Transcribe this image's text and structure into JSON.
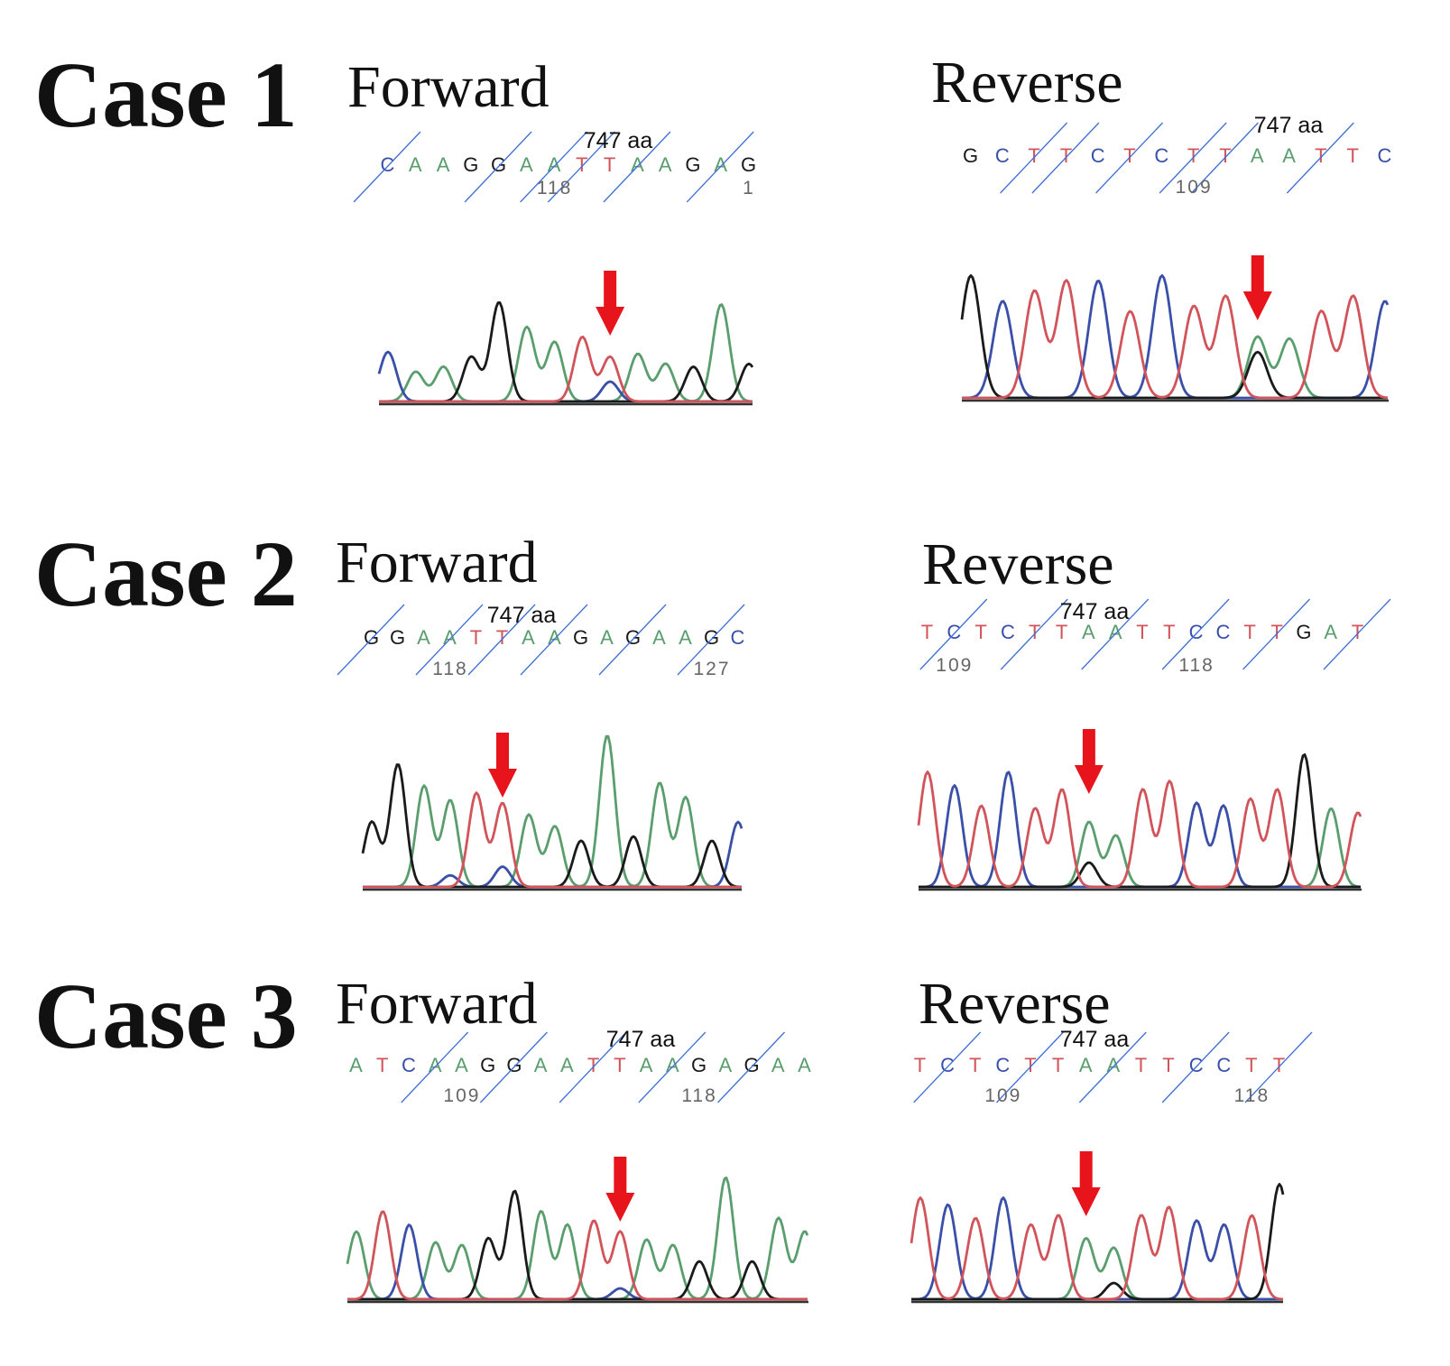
{
  "colors": {
    "A": "#5a9e6e",
    "C": "#3a50a8",
    "G": "#1a1a1a",
    "T": "#d0545a",
    "slash": "#3f6fd6",
    "arrow": "#e8141c"
  },
  "cases": [
    {
      "title": "Case 1",
      "forward": {
        "title": "Forward",
        "marker": "747 aa",
        "bases": [
          "C",
          "A",
          "A",
          "G",
          "G",
          "A",
          "A",
          "T",
          "T",
          "A",
          "A",
          "G",
          "A",
          "G"
        ],
        "positions": [
          "118",
          "1"
        ],
        "peaks": [
          {
            "b": "C",
            "h": 0.5
          },
          {
            "b": "A",
            "h": 0.3
          },
          {
            "b": "A",
            "h": 0.35
          },
          {
            "b": "G",
            "h": 0.45
          },
          {
            "b": "G",
            "h": 1.0
          },
          {
            "b": "A",
            "h": 0.75
          },
          {
            "b": "A",
            "h": 0.6
          },
          {
            "b": "T",
            "h": 0.65
          },
          {
            "b": "T",
            "h": 0.45
          },
          {
            "b": "A",
            "h": 0.48
          },
          {
            "b": "A",
            "h": 0.38
          },
          {
            "b": "G",
            "h": 0.35
          },
          {
            "b": "A",
            "h": 0.98
          },
          {
            "b": "G",
            "h": 0.38
          }
        ],
        "secondary": [
          {
            "i": 8,
            "b": "C",
            "h": 0.2
          }
        ]
      },
      "reverse": {
        "title": "Reverse",
        "marker": "747 aa",
        "bases": [
          "G",
          "C",
          "T",
          "T",
          "C",
          "T",
          "C",
          "T",
          "T",
          "A",
          "A",
          "T",
          "T",
          "C"
        ],
        "positions": [
          "109"
        ],
        "peaks": [
          {
            "b": "G",
            "h": 1.2
          },
          {
            "b": "C",
            "h": 0.95
          },
          {
            "b": "T",
            "h": 1.05
          },
          {
            "b": "T",
            "h": 1.15
          },
          {
            "b": "C",
            "h": 1.15
          },
          {
            "b": "T",
            "h": 0.85
          },
          {
            "b": "C",
            "h": 1.2
          },
          {
            "b": "T",
            "h": 0.9
          },
          {
            "b": "T",
            "h": 1.0
          },
          {
            "b": "A",
            "h": 0.6
          },
          {
            "b": "A",
            "h": 0.58
          },
          {
            "b": "T",
            "h": 0.85
          },
          {
            "b": "T",
            "h": 1.0
          },
          {
            "b": "C",
            "h": 0.95
          }
        ],
        "secondary": [
          {
            "i": 9,
            "b": "G",
            "h": 0.45
          }
        ]
      }
    },
    {
      "title": "Case 2",
      "forward": {
        "title": "Forward",
        "marker": "747 aa",
        "bases": [
          "G",
          "G",
          "A",
          "A",
          "T",
          "T",
          "A",
          "A",
          "G",
          "A",
          "G",
          "A",
          "A",
          "G",
          "C"
        ],
        "positions": [
          "118",
          "127"
        ],
        "peaks": [
          {
            "b": "G",
            "h": 0.45
          },
          {
            "b": "G",
            "h": 0.85
          },
          {
            "b": "A",
            "h": 0.7
          },
          {
            "b": "A",
            "h": 0.6
          },
          {
            "b": "T",
            "h": 0.65
          },
          {
            "b": "T",
            "h": 0.58
          },
          {
            "b": "A",
            "h": 0.5
          },
          {
            "b": "A",
            "h": 0.42
          },
          {
            "b": "G",
            "h": 0.32
          },
          {
            "b": "A",
            "h": 1.05
          },
          {
            "b": "G",
            "h": 0.35
          },
          {
            "b": "A",
            "h": 0.72
          },
          {
            "b": "A",
            "h": 0.62
          },
          {
            "b": "G",
            "h": 0.32
          },
          {
            "b": "C",
            "h": 0.45
          }
        ],
        "secondary": [
          {
            "i": 5,
            "b": "C",
            "h": 0.14
          },
          {
            "i": 3,
            "b": "C",
            "h": 0.08
          }
        ]
      },
      "reverse": {
        "title": "Reverse",
        "marker": "747 aa",
        "bases": [
          "T",
          "C",
          "T",
          "C",
          "T",
          "T",
          "A",
          "A",
          "T",
          "T",
          "C",
          "C",
          "T",
          "T",
          "G",
          "A",
          "T"
        ],
        "positions": [
          "109",
          "118"
        ],
        "peaks": [
          {
            "b": "T",
            "h": 0.85
          },
          {
            "b": "C",
            "h": 0.75
          },
          {
            "b": "T",
            "h": 0.6
          },
          {
            "b": "C",
            "h": 0.85
          },
          {
            "b": "T",
            "h": 0.58
          },
          {
            "b": "T",
            "h": 0.72
          },
          {
            "b": "A",
            "h": 0.48
          },
          {
            "b": "A",
            "h": 0.38
          },
          {
            "b": "T",
            "h": 0.72
          },
          {
            "b": "T",
            "h": 0.78
          },
          {
            "b": "C",
            "h": 0.62
          },
          {
            "b": "C",
            "h": 0.6
          },
          {
            "b": "T",
            "h": 0.65
          },
          {
            "b": "T",
            "h": 0.72
          },
          {
            "b": "G",
            "h": 0.98
          },
          {
            "b": "A",
            "h": 0.58
          },
          {
            "b": "T",
            "h": 0.55
          }
        ],
        "secondary": [
          {
            "i": 6,
            "b": "G",
            "h": 0.18
          }
        ]
      }
    },
    {
      "title": "Case 3",
      "forward": {
        "title": "Forward",
        "marker": "747 aa",
        "bases": [
          "A",
          "T",
          "C",
          "A",
          "A",
          "G",
          "G",
          "A",
          "A",
          "T",
          "T",
          "A",
          "A",
          "G",
          "A",
          "G",
          "A",
          "A"
        ],
        "positions": [
          "109",
          "118"
        ],
        "peaks": [
          {
            "b": "A",
            "h": 0.5
          },
          {
            "b": "T",
            "h": 0.65
          },
          {
            "b": "C",
            "h": 0.55
          },
          {
            "b": "A",
            "h": 0.42
          },
          {
            "b": "A",
            "h": 0.4
          },
          {
            "b": "G",
            "h": 0.45
          },
          {
            "b": "G",
            "h": 0.8
          },
          {
            "b": "A",
            "h": 0.65
          },
          {
            "b": "A",
            "h": 0.55
          },
          {
            "b": "T",
            "h": 0.58
          },
          {
            "b": "T",
            "h": 0.5
          },
          {
            "b": "A",
            "h": 0.44
          },
          {
            "b": "A",
            "h": 0.4
          },
          {
            "b": "G",
            "h": 0.28
          },
          {
            "b": "A",
            "h": 0.9
          },
          {
            "b": "G",
            "h": 0.28
          },
          {
            "b": "A",
            "h": 0.6
          },
          {
            "b": "A",
            "h": 0.5
          }
        ],
        "secondary": [
          {
            "i": 10,
            "b": "C",
            "h": 0.08
          }
        ]
      },
      "reverse": {
        "title": "Reverse",
        "marker": "747 aa",
        "bases": [
          "T",
          "C",
          "T",
          "C",
          "T",
          "T",
          "A",
          "A",
          "T",
          "T",
          "C",
          "C",
          "T",
          "T"
        ],
        "positions": [
          "109",
          "118"
        ],
        "peaks": [
          {
            "b": "T",
            "h": 0.75
          },
          {
            "b": "C",
            "h": 0.7
          },
          {
            "b": "T",
            "h": 0.6
          },
          {
            "b": "C",
            "h": 0.75
          },
          {
            "b": "T",
            "h": 0.55
          },
          {
            "b": "T",
            "h": 0.62
          },
          {
            "b": "A",
            "h": 0.45
          },
          {
            "b": "A",
            "h": 0.38
          },
          {
            "b": "T",
            "h": 0.62
          },
          {
            "b": "T",
            "h": 0.68
          },
          {
            "b": "C",
            "h": 0.58
          },
          {
            "b": "C",
            "h": 0.55
          },
          {
            "b": "T",
            "h": 0.62
          },
          {
            "b": "G",
            "h": 0.85
          }
        ],
        "secondary": [
          {
            "i": 7,
            "b": "G",
            "h": 0.12
          }
        ]
      }
    }
  ]
}
